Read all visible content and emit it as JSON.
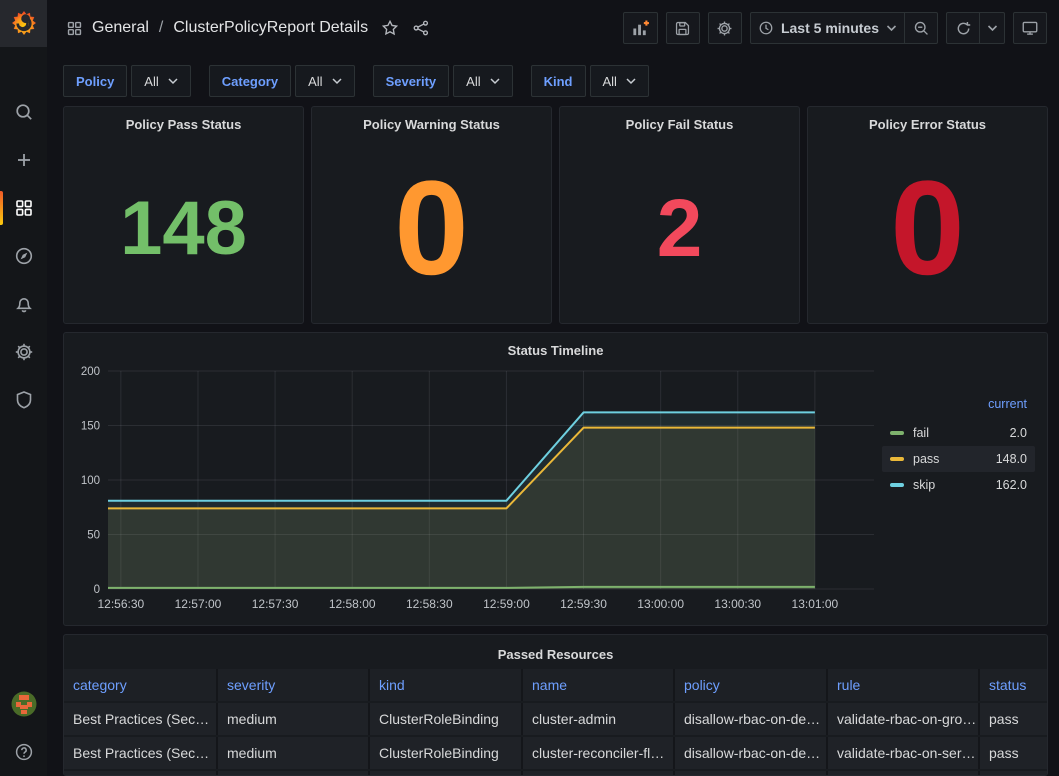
{
  "nav": {
    "folder": "General",
    "separator": "/",
    "title": "ClusterPolicyReport Details",
    "time_range": "Last 5 minutes"
  },
  "filters": [
    {
      "label": "Policy",
      "value": "All"
    },
    {
      "label": "Category",
      "value": "All"
    },
    {
      "label": "Severity",
      "value": "All"
    },
    {
      "label": "Kind",
      "value": "All"
    }
  ],
  "stats": [
    {
      "title": "Policy Pass Status",
      "value": "148",
      "color": "#73BF69"
    },
    {
      "title": "Policy Warning Status",
      "value": "0",
      "color": "#FF9830"
    },
    {
      "title": "Policy Fail Status",
      "value": "2",
      "color": "#F2495C"
    },
    {
      "title": "Policy Error Status",
      "value": "0",
      "color": "#C4162A"
    }
  ],
  "chart_data": {
    "type": "line",
    "title": "Status Timeline",
    "x_domain": [
      "12:56:25",
      "13:01:23"
    ],
    "x_ticks": [
      "12:56:30",
      "12:57:00",
      "12:57:30",
      "12:58:00",
      "12:58:30",
      "12:59:00",
      "12:59:30",
      "13:00:00",
      "13:00:30",
      "13:01:00"
    ],
    "y_ticks": [
      0,
      50,
      100,
      150,
      200
    ],
    "y_max": 200,
    "grid": true,
    "legend_position": "right",
    "legend_header": "current",
    "series": [
      {
        "name": "fail",
        "color": "#7EB26D",
        "current": "2.0",
        "points": [
          [
            "12:56:25",
            1
          ],
          [
            "12:59:00",
            1
          ],
          [
            "12:59:30",
            2
          ],
          [
            "13:01:00",
            2
          ]
        ]
      },
      {
        "name": "pass",
        "color": "#EAB839",
        "current": "148.0",
        "points": [
          [
            "12:56:25",
            74
          ],
          [
            "12:59:00",
            74
          ],
          [
            "12:59:30",
            148
          ],
          [
            "13:01:00",
            148
          ]
        ]
      },
      {
        "name": "skip",
        "color": "#6ED0E0",
        "current": "162.0",
        "points": [
          [
            "12:56:25",
            81
          ],
          [
            "12:59:00",
            81
          ],
          [
            "12:59:30",
            162
          ],
          [
            "13:01:00",
            162
          ]
        ]
      }
    ]
  },
  "table": {
    "title": "Passed Resources",
    "headers": [
      "category",
      "severity",
      "kind",
      "name",
      "policy",
      "rule",
      "status"
    ],
    "rows": [
      [
        "Best Practices (Sec…",
        "medium",
        "ClusterRoleBinding",
        "cluster-admin",
        "disallow-rbac-on-de…",
        "validate-rbac-on-gro…",
        "pass"
      ],
      [
        "Best Practices (Sec…",
        "medium",
        "ClusterRoleBinding",
        "cluster-reconciler-fl…",
        "disallow-rbac-on-de…",
        "validate-rbac-on-ser…",
        "pass"
      ]
    ]
  },
  "icons": {
    "grafana-logo": "flame-swirl",
    "search": "magnifier",
    "create": "plus",
    "dashboards": "four-squares",
    "explore": "compass",
    "alerting": "bell",
    "configuration": "gear",
    "server-admin-shield": "shield",
    "avatar": "pixel-face-circle",
    "help": "question-circle",
    "breadcrumb-grid": "four-squares",
    "favorite": "star-outline",
    "share": "share-nodes",
    "add-panel": "bar-chart-plus",
    "save-dashboard": "floppy-disk",
    "dashboard-settings": "gear",
    "time-range-clock": "clock",
    "caret-down": "chevron-down",
    "zoom-out": "magnifier-minus",
    "refresh": "circular-arrow",
    "tv-mode": "monitor"
  }
}
